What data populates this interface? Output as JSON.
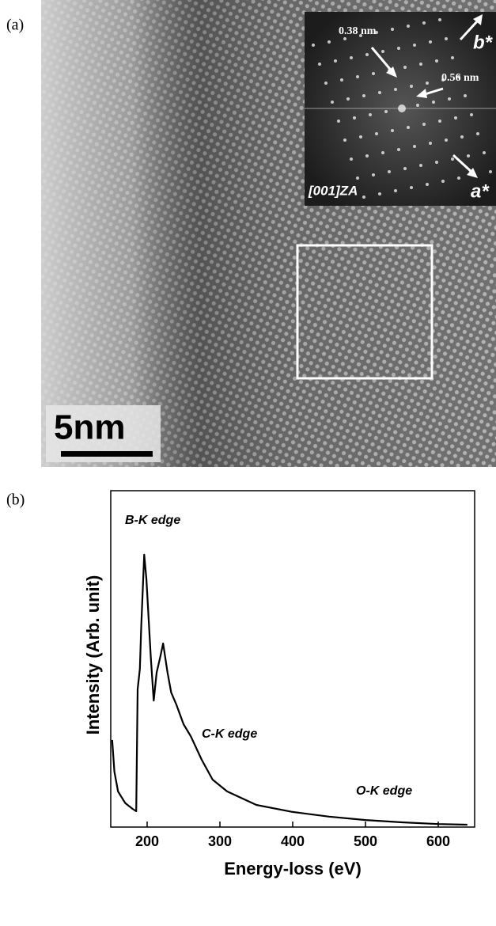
{
  "panel_a": {
    "label": "(a)",
    "scale_bar": "5nm",
    "inset": {
      "spacing_1": "0.38 nm",
      "spacing_2": "0.56 nm",
      "axis_b": "b*",
      "axis_a": "a*",
      "zone_axis": "[001]ZA"
    }
  },
  "panel_b": {
    "label": "(b)"
  },
  "chart_data": {
    "type": "line",
    "xlabel": "Energy-loss (eV)",
    "ylabel": "Intensity (Arb. unit)",
    "annotations": [
      "B-K edge",
      "C-K edge",
      "O-K edge"
    ],
    "xlim": [
      150,
      650
    ],
    "xticks": [
      200,
      300,
      400,
      500,
      600
    ],
    "ylim": [
      0,
      100
    ],
    "series": [
      {
        "color": "#000000",
        "x": [
          152,
          155,
          160,
          170,
          180,
          185,
          187,
          190,
          192,
          196,
          199,
          205,
          209,
          213,
          218,
          222,
          228,
          233,
          240,
          250,
          260,
          275,
          290,
          310,
          350,
          400,
          450,
          500,
          550,
          600,
          640
        ],
        "values": [
          25.9,
          16.5,
          10.6,
          7.1,
          5.4,
          4.7,
          41,
          47,
          60,
          81,
          73.6,
          50.6,
          37.6,
          45.9,
          50.6,
          54.6,
          45.9,
          40,
          36.5,
          30.6,
          27,
          20,
          14.1,
          10.6,
          6.6,
          4.5,
          3.1,
          2.1,
          1.4,
          0.9,
          0.7
        ]
      }
    ]
  }
}
